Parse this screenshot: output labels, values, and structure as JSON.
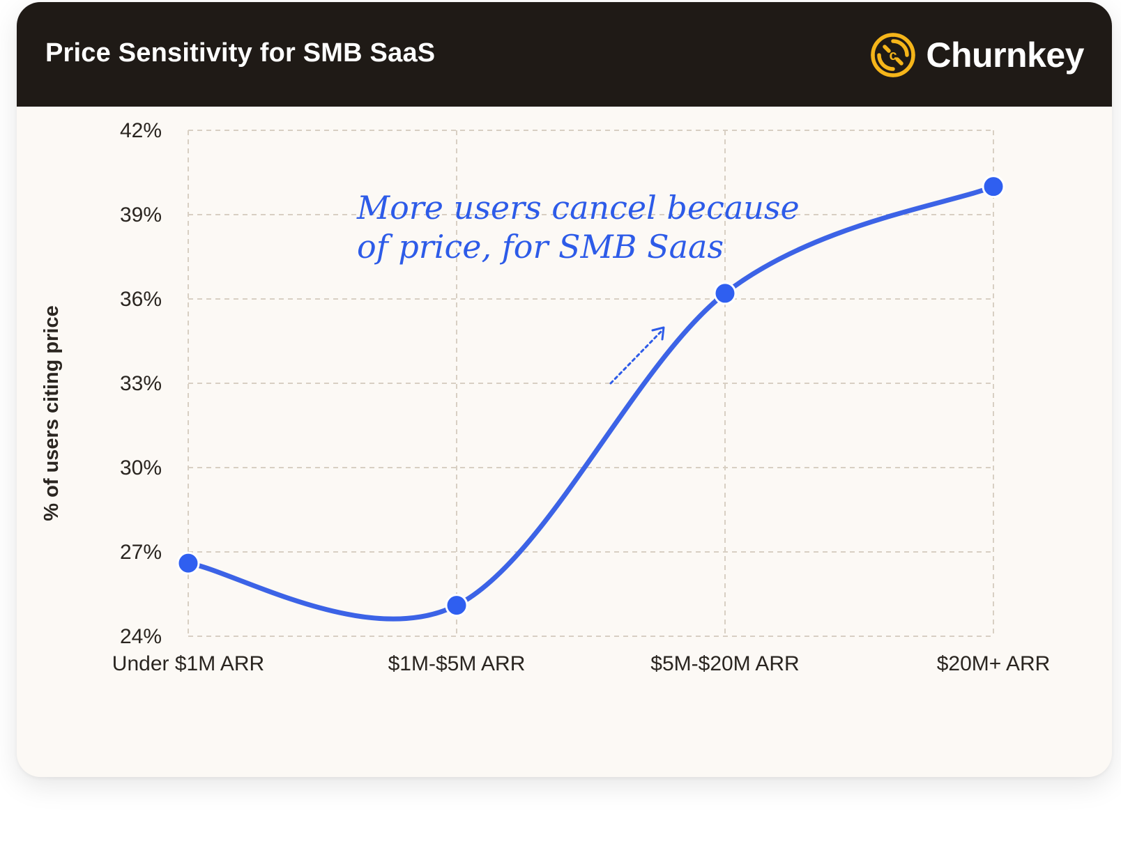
{
  "header": {
    "title": "Price Sensitivity for SMB SaaS",
    "brand": "Churnkey"
  },
  "colors": {
    "header_bg": "#1f1a16",
    "card_bg": "#fcf9f5",
    "accent": "#3c63e6",
    "logo": "#f5b51a",
    "grid": "#d8cfc3"
  },
  "icons": {
    "brand_logo": "churnkey-logo-icon",
    "arrow": "dotted-arrow-icon"
  },
  "chart_data": {
    "type": "line",
    "title": "Price Sensitivity for SMB SaaS",
    "xlabel": "",
    "ylabel": "% of users citing price",
    "categories": [
      "Under $1M ARR",
      "$1M-$5M ARR",
      "$5M-$20M ARR",
      "$20M+ ARR"
    ],
    "series": [
      {
        "name": "% of users citing price",
        "values": [
          26.6,
          25.1,
          36.2,
          40.0
        ]
      }
    ],
    "ylim": [
      24,
      42
    ],
    "yticks": [
      24,
      27,
      30,
      33,
      36,
      39,
      42
    ],
    "ytick_labels": [
      "24%",
      "27%",
      "30%",
      "33%",
      "36%",
      "39%",
      "42%"
    ],
    "grid": true,
    "annotation": {
      "lines": [
        "More users cancel because",
        "of price, for SMB Saas"
      ]
    }
  }
}
